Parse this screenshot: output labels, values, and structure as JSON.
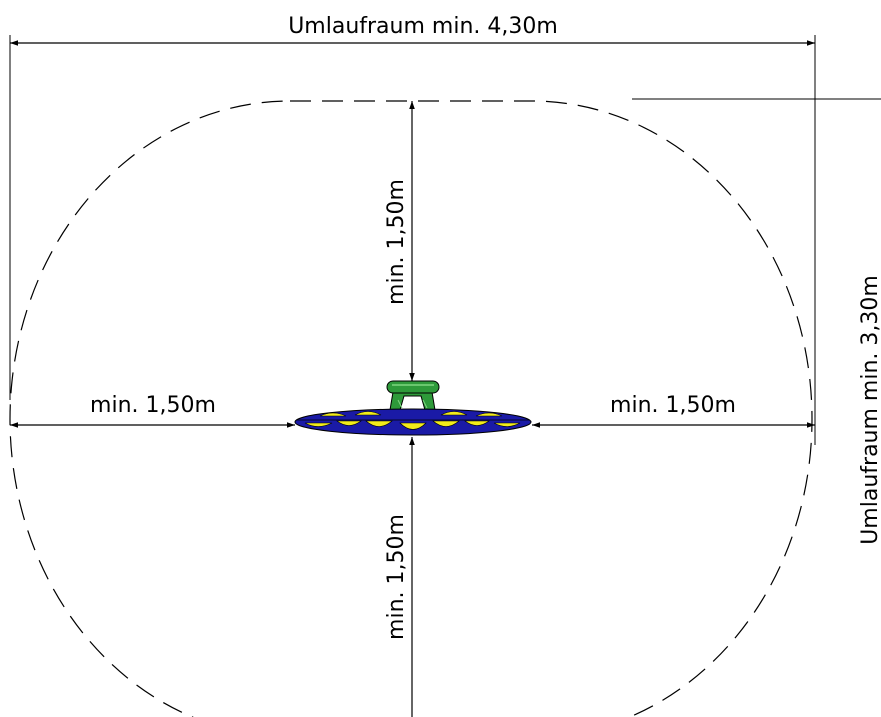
{
  "dimensions": {
    "total_width_label": "Umlaufraum min. 4,30m",
    "total_depth_label": "Umlaufraum min. 3,30m",
    "clearance_top_label": "min. 1,50m",
    "clearance_bottom_label": "min. 1,50m",
    "clearance_left_label": "min. 1,50m",
    "clearance_right_label": "min. 1,50m"
  },
  "colors": {
    "line": "#000000",
    "disc_fill": "#1a1aa6",
    "disc_pattern": "#f2ec1a",
    "seat_fill": "#2e9a3a",
    "seat_highlight": "#7fd67f"
  }
}
